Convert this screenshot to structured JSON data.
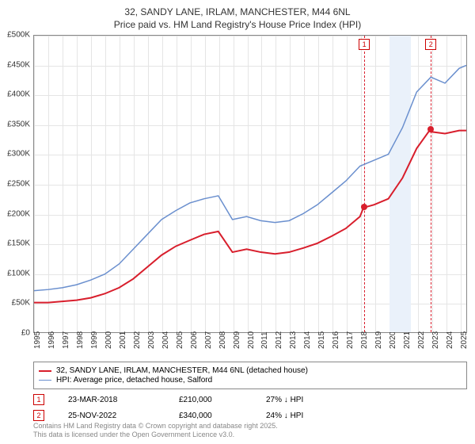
{
  "title_line1": "32, SANDY LANE, IRLAM, MANCHESTER, M44 6NL",
  "title_line2": "Price paid vs. HM Land Registry's House Price Index (HPI)",
  "title_fontsize": 12,
  "chart": {
    "type": "line",
    "background_color": "#ffffff",
    "grid_color": "#e5e5e5",
    "border_color": "#888888",
    "ylim": [
      0,
      500000
    ],
    "ytick_step": 50000,
    "ytick_labels": [
      "£0",
      "£50K",
      "£100K",
      "£150K",
      "£200K",
      "£250K",
      "£300K",
      "£350K",
      "£400K",
      "£450K",
      "£500K"
    ],
    "xlim": [
      1995,
      2025.5
    ],
    "xtick_step": 1,
    "xtick_labels": [
      "1995",
      "1996",
      "1997",
      "1998",
      "1999",
      "2000",
      "2001",
      "2002",
      "2003",
      "2004",
      "2005",
      "2006",
      "2007",
      "2008",
      "2009",
      "2010",
      "2011",
      "2012",
      "2013",
      "2014",
      "2015",
      "2016",
      "2017",
      "2018",
      "2019",
      "2020",
      "2021",
      "2022",
      "2023",
      "2024",
      "2025"
    ],
    "label_fontsize": 10,
    "shaded_band": {
      "start_year": 2020.0,
      "end_year": 2021.5,
      "color": "#eaf1fa"
    },
    "series": [
      {
        "name": "price_paid",
        "label": "32, SANDY LANE, IRLAM, MANCHESTER, M44 6NL (detached house)",
        "color": "#d81e2c",
        "line_width": 2,
        "x": [
          1995,
          1996,
          1997,
          1998,
          1999,
          2000,
          2001,
          2002,
          2003,
          2004,
          2005,
          2006,
          2007,
          2008,
          2009,
          2010,
          2011,
          2012,
          2013,
          2014,
          2015,
          2016,
          2017,
          2018,
          2018.25,
          2019,
          2020,
          2021,
          2022,
          2022.9,
          2023,
          2024,
          2025,
          2025.5
        ],
        "y": [
          50000,
          50000,
          52000,
          54000,
          58000,
          65000,
          75000,
          90000,
          110000,
          130000,
          145000,
          155000,
          165000,
          170000,
          135000,
          140000,
          135000,
          132000,
          135000,
          142000,
          150000,
          162000,
          175000,
          195000,
          210000,
          215000,
          225000,
          260000,
          310000,
          340000,
          338000,
          335000,
          340000,
          340000
        ]
      },
      {
        "name": "hpi",
        "label": "HPI: Average price, detached house, Salford",
        "color": "#6a8fce",
        "line_width": 1.5,
        "x": [
          1995,
          1996,
          1997,
          1998,
          1999,
          2000,
          2001,
          2002,
          2003,
          2004,
          2005,
          2006,
          2007,
          2008,
          2009,
          2010,
          2011,
          2012,
          2013,
          2014,
          2015,
          2016,
          2017,
          2018,
          2019,
          2020,
          2021,
          2022,
          2023,
          2024,
          2025,
          2025.5
        ],
        "y": [
          70000,
          72000,
          75000,
          80000,
          88000,
          98000,
          115000,
          140000,
          165000,
          190000,
          205000,
          218000,
          225000,
          230000,
          190000,
          195000,
          188000,
          185000,
          188000,
          200000,
          215000,
          235000,
          255000,
          280000,
          290000,
          300000,
          345000,
          405000,
          430000,
          420000,
          445000,
          450000
        ]
      }
    ],
    "sale_markers": [
      {
        "num": "1",
        "year": 2018.22,
        "price": 210000
      },
      {
        "num": "2",
        "year": 2022.9,
        "price": 340000
      }
    ]
  },
  "legend": {
    "border_color": "#888888",
    "items": [
      {
        "color": "#d81e2c",
        "width": 2,
        "label": "32, SANDY LANE, IRLAM, MANCHESTER, M44 6NL (detached house)"
      },
      {
        "color": "#6a8fce",
        "width": 1.5,
        "label": "HPI: Average price, detached house, Salford"
      }
    ]
  },
  "annotations": [
    {
      "num": "1",
      "date": "23-MAR-2018",
      "price": "£210,000",
      "pct": "27% ↓ HPI"
    },
    {
      "num": "2",
      "date": "25-NOV-2022",
      "price": "£340,000",
      "pct": "24% ↓ HPI"
    }
  ],
  "footer": {
    "line1": "Contains HM Land Registry data © Crown copyright and database right 2025.",
    "line2": "This data is licensed under the Open Government Licence v3.0."
  }
}
